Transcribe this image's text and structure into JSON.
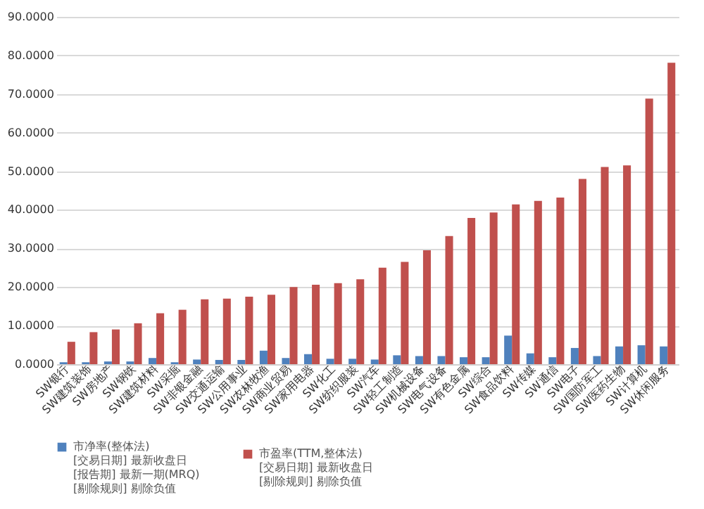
{
  "chart_data": {
    "type": "bar",
    "categories": [
      "SW银行",
      "SW建筑装饰",
      "SW房地产",
      "SW钢铁",
      "SW建筑材料",
      "SW采掘",
      "SW非银金融",
      "SW交通运输",
      "SW公用事业",
      "SW农林牧渔",
      "SW商业贸易",
      "SW家用电器",
      "SW化工",
      "SW纺织服装",
      "SW汽车",
      "SW轻工制造",
      "SW机械设备",
      "SW电气设备",
      "SW有色金属",
      "SW综合",
      "SW食品饮料",
      "SW传媒",
      "SW通信",
      "SW电子",
      "SW国防军工",
      "SW医药生物",
      "SW计算机",
      "SW休闲服务"
    ],
    "series": [
      {
        "name": "市净率(整体法)\n[交易日期] 最新收盘日\n[报告期] 最新一期(MRQ)\n[剔除规则] 剔除负值",
        "color": "#4f81bd",
        "values": [
          0.5,
          0.5,
          0.7,
          0.7,
          1.6,
          0.5,
          1.2,
          1.1,
          1.1,
          3.5,
          1.6,
          2.6,
          1.4,
          1.4,
          1.2,
          2.3,
          2.1,
          2.1,
          1.8,
          1.8,
          7.4,
          2.8,
          1.8,
          4.2,
          2.1,
          4.6,
          4.9,
          4.6
        ]
      },
      {
        "name": "市盈率(TTM,整体法)\n[交易日期] 最新收盘日\n[剔除规则] 剔除负值",
        "color": "#c0504d",
        "values": [
          5.8,
          8.3,
          9.0,
          10.6,
          13.2,
          14.1,
          16.8,
          17.0,
          17.5,
          18.0,
          20.0,
          20.6,
          21.0,
          22.0,
          25.0,
          26.5,
          29.5,
          33.2,
          37.9,
          39.3,
          41.4,
          42.3,
          43.2,
          48.0,
          51.1,
          51.5,
          68.8,
          78.1
        ]
      }
    ],
    "ylim": [
      0,
      90
    ],
    "yticks": [
      {
        "value": 0,
        "label": "0.0000"
      },
      {
        "value": 10,
        "label": "10.0000"
      },
      {
        "value": 20,
        "label": "20.0000"
      },
      {
        "value": 30,
        "label": "30.0000"
      },
      {
        "value": 40,
        "label": "40.0000"
      },
      {
        "value": 50,
        "label": "50.0000"
      },
      {
        "value": 60,
        "label": "60.0000"
      },
      {
        "value": 70,
        "label": "70.0000"
      },
      {
        "value": 80,
        "label": "80.0000"
      },
      {
        "value": 90,
        "label": "90.0000"
      }
    ],
    "grid": "y",
    "legend": "bottom"
  }
}
